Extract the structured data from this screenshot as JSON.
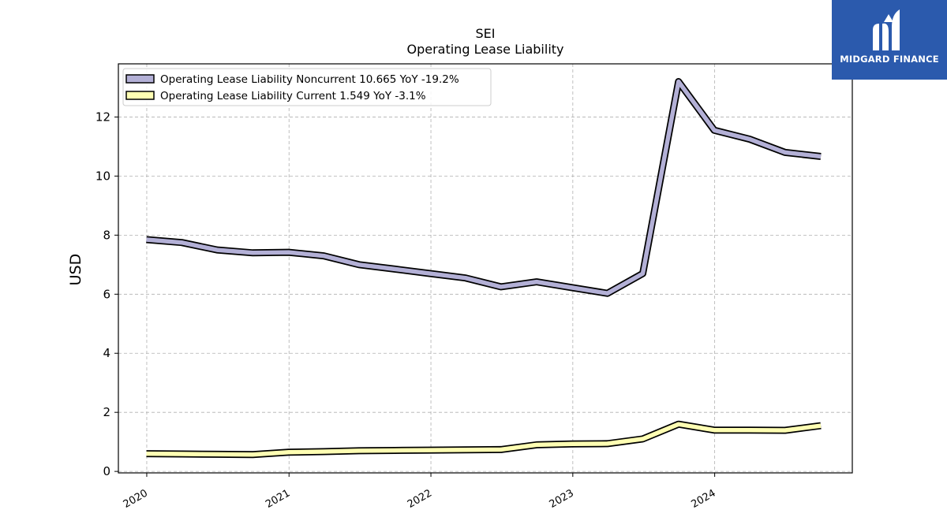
{
  "chart_data": {
    "type": "line",
    "title": "SEI",
    "subtitle": "Operating Lease Liability",
    "ylabel": "USD",
    "xlabel": "",
    "ylim": [
      -0.05,
      13.8
    ],
    "xlim": [
      "2019-10-20",
      "2024-12-20"
    ],
    "yticks": [
      0,
      2,
      4,
      6,
      8,
      10,
      12
    ],
    "xticks": [
      "2020",
      "2021",
      "2022",
      "2023",
      "2024"
    ],
    "grid": true,
    "legend_position": "top-left",
    "x": [
      "2019-12-31",
      "2020-03-31",
      "2020-06-30",
      "2020-09-30",
      "2020-12-31",
      "2021-03-31",
      "2021-06-30",
      "2021-09-30",
      "2021-12-31",
      "2022-03-31",
      "2022-06-30",
      "2022-09-30",
      "2022-12-31",
      "2023-03-31",
      "2023-06-30",
      "2023-09-30",
      "2023-12-31",
      "2024-03-31",
      "2024-06-30",
      "2024-09-30"
    ],
    "series": [
      {
        "name": "Operating Lease Liability Noncurrent",
        "legend_label": "Operating Lease Liability Noncurrent  10.665 YoY -19.2%",
        "color": "#b3b0d6",
        "values": [
          7.85,
          7.75,
          7.5,
          7.4,
          7.42,
          7.3,
          7.0,
          6.85,
          6.7,
          6.55,
          6.25,
          6.42,
          6.22,
          6.03,
          6.7,
          13.2,
          11.55,
          11.25,
          10.8,
          10.665
        ]
      },
      {
        "name": "Operating Lease Liability Current",
        "legend_label": "Operating Lease Liability Current  1.549 YoY -3.1%",
        "color": "#ffffb3",
        "values": [
          0.6,
          0.59,
          0.58,
          0.57,
          0.65,
          0.67,
          0.7,
          0.71,
          0.72,
          0.73,
          0.74,
          0.9,
          0.93,
          0.94,
          1.1,
          1.6,
          1.4,
          1.4,
          1.39,
          1.549
        ]
      }
    ]
  },
  "logo": {
    "text": "MIDGARD FINANCE",
    "bg_color": "#2b5aad"
  }
}
